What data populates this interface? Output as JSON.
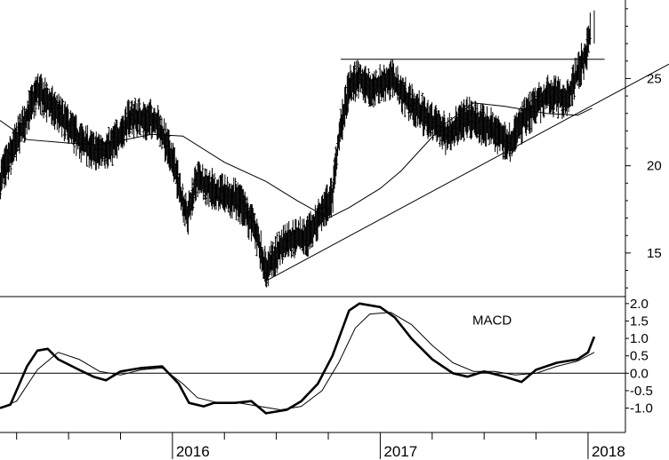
{
  "chart_data": [
    {
      "type": "ohlc",
      "panel": "price",
      "title": "",
      "ylim": [
        12.5,
        29.5
      ],
      "y_ticks": [
        {
          "value": 15,
          "label": "15"
        },
        {
          "value": 20,
          "label": "20"
        },
        {
          "value": 25,
          "label": "25"
        }
      ],
      "x_year_labels": [
        "2016",
        "2017",
        "2018"
      ],
      "moving_average_keypoints": [
        [
          2015.17,
          22.6
        ],
        [
          2015.3,
          21.5
        ],
        [
          2015.5,
          21.3
        ],
        [
          2015.65,
          21.2
        ],
        [
          2015.9,
          21.8
        ],
        [
          2016.05,
          21.7
        ],
        [
          2016.25,
          20.2
        ],
        [
          2016.45,
          19.1
        ],
        [
          2016.6,
          18.0
        ],
        [
          2016.75,
          17.0
        ],
        [
          2016.85,
          17.6
        ],
        [
          2017.0,
          18.7
        ],
        [
          2017.1,
          19.7
        ],
        [
          2017.3,
          22.3
        ],
        [
          2017.45,
          23.6
        ],
        [
          2017.6,
          23.4
        ],
        [
          2017.8,
          23.0
        ],
        [
          2017.95,
          22.9
        ],
        [
          2018.02,
          23.3
        ]
      ],
      "price_keypoints": [
        [
          2015.17,
          19.2
        ],
        [
          2015.27,
          22.0
        ],
        [
          2015.35,
          24.3
        ],
        [
          2015.45,
          23.0
        ],
        [
          2015.55,
          21.5
        ],
        [
          2015.62,
          20.8
        ],
        [
          2015.7,
          21.0
        ],
        [
          2015.8,
          22.8
        ],
        [
          2015.92,
          22.6
        ],
        [
          2016.0,
          20.4
        ],
        [
          2016.07,
          17.0
        ],
        [
          2016.12,
          19.3
        ],
        [
          2016.22,
          18.4
        ],
        [
          2016.32,
          18.0
        ],
        [
          2016.4,
          16.3
        ],
        [
          2016.45,
          14.0
        ],
        [
          2016.55,
          15.8
        ],
        [
          2016.65,
          15.9
        ],
        [
          2016.72,
          17.4
        ],
        [
          2016.77,
          18.3
        ],
        [
          2016.8,
          21.5
        ],
        [
          2016.85,
          24.5
        ],
        [
          2016.9,
          25.1
        ],
        [
          2016.95,
          24.3
        ],
        [
          2017.05,
          25.0
        ],
        [
          2017.15,
          23.5
        ],
        [
          2017.25,
          22.5
        ],
        [
          2017.32,
          21.8
        ],
        [
          2017.42,
          22.8
        ],
        [
          2017.55,
          22.0
        ],
        [
          2017.62,
          21.3
        ],
        [
          2017.7,
          22.8
        ],
        [
          2017.8,
          24.0
        ],
        [
          2017.9,
          23.9
        ],
        [
          2017.96,
          25.6
        ],
        [
          2017.99,
          26.4
        ],
        [
          2018.01,
          27.6
        ]
      ],
      "horizontal_line": {
        "y": 26.1,
        "x_start": 2016.81,
        "x_end": 2018.08
      },
      "trendline": {
        "x1": 2016.45,
        "y1": 13.4,
        "x2": 2018.12,
        "y2": 24.1
      }
    },
    {
      "type": "line",
      "panel": "indicator",
      "label": "MACD",
      "ylim": [
        -1.7,
        2.2
      ],
      "y_ticks": [
        {
          "value": 2.0,
          "label": "2.0"
        },
        {
          "value": 1.5,
          "label": "1.5"
        },
        {
          "value": 1.0,
          "label": "1.0"
        },
        {
          "value": 0.5,
          "label": "0.5"
        },
        {
          "value": 0.0,
          "label": "0.0"
        },
        {
          "value": -0.5,
          "label": "-0.5"
        },
        {
          "value": -1.0,
          "label": "-1.0"
        }
      ],
      "zero_line": 0.0,
      "series": [
        {
          "role": "macd",
          "points": [
            [
              2015.17,
              -1.0
            ],
            [
              2015.22,
              -0.9
            ],
            [
              2015.3,
              0.2
            ],
            [
              2015.35,
              0.65
            ],
            [
              2015.4,
              0.7
            ],
            [
              2015.45,
              0.4
            ],
            [
              2015.55,
              0.1
            ],
            [
              2015.62,
              -0.1
            ],
            [
              2015.68,
              -0.2
            ],
            [
              2015.75,
              0.05
            ],
            [
              2015.85,
              0.15
            ],
            [
              2015.95,
              0.2
            ],
            [
              2016.03,
              -0.3
            ],
            [
              2016.08,
              -0.85
            ],
            [
              2016.15,
              -0.95
            ],
            [
              2016.2,
              -0.85
            ],
            [
              2016.3,
              -0.85
            ],
            [
              2016.38,
              -0.8
            ],
            [
              2016.45,
              -1.15
            ],
            [
              2016.55,
              -1.05
            ],
            [
              2016.62,
              -0.8
            ],
            [
              2016.7,
              -0.3
            ],
            [
              2016.77,
              0.5
            ],
            [
              2016.85,
              1.8
            ],
            [
              2016.9,
              2.0
            ],
            [
              2017.0,
              1.9
            ],
            [
              2017.07,
              1.6
            ],
            [
              2017.15,
              1.0
            ],
            [
              2017.25,
              0.4
            ],
            [
              2017.35,
              0.0
            ],
            [
              2017.42,
              -0.1
            ],
            [
              2017.5,
              0.05
            ],
            [
              2017.6,
              -0.1
            ],
            [
              2017.68,
              -0.25
            ],
            [
              2017.75,
              0.1
            ],
            [
              2017.85,
              0.3
            ],
            [
              2017.95,
              0.4
            ],
            [
              2018.0,
              0.6
            ],
            [
              2018.03,
              1.05
            ]
          ]
        },
        {
          "role": "signal",
          "points": [
            [
              2015.17,
              -1.0
            ],
            [
              2015.25,
              -0.8
            ],
            [
              2015.35,
              0.1
            ],
            [
              2015.45,
              0.6
            ],
            [
              2015.55,
              0.4
            ],
            [
              2015.65,
              0.05
            ],
            [
              2015.75,
              -0.05
            ],
            [
              2015.85,
              0.1
            ],
            [
              2015.95,
              0.15
            ],
            [
              2016.05,
              -0.3
            ],
            [
              2016.12,
              -0.7
            ],
            [
              2016.22,
              -0.85
            ],
            [
              2016.32,
              -0.85
            ],
            [
              2016.42,
              -0.95
            ],
            [
              2016.52,
              -1.05
            ],
            [
              2016.62,
              -0.95
            ],
            [
              2016.72,
              -0.5
            ],
            [
              2016.8,
              0.3
            ],
            [
              2016.88,
              1.3
            ],
            [
              2016.95,
              1.7
            ],
            [
              2017.05,
              1.75
            ],
            [
              2017.15,
              1.4
            ],
            [
              2017.25,
              0.8
            ],
            [
              2017.35,
              0.3
            ],
            [
              2017.45,
              0.05
            ],
            [
              2017.55,
              0.05
            ],
            [
              2017.65,
              -0.05
            ],
            [
              2017.75,
              0.0
            ],
            [
              2017.85,
              0.2
            ],
            [
              2017.95,
              0.35
            ],
            [
              2018.03,
              0.6
            ]
          ]
        }
      ]
    }
  ]
}
